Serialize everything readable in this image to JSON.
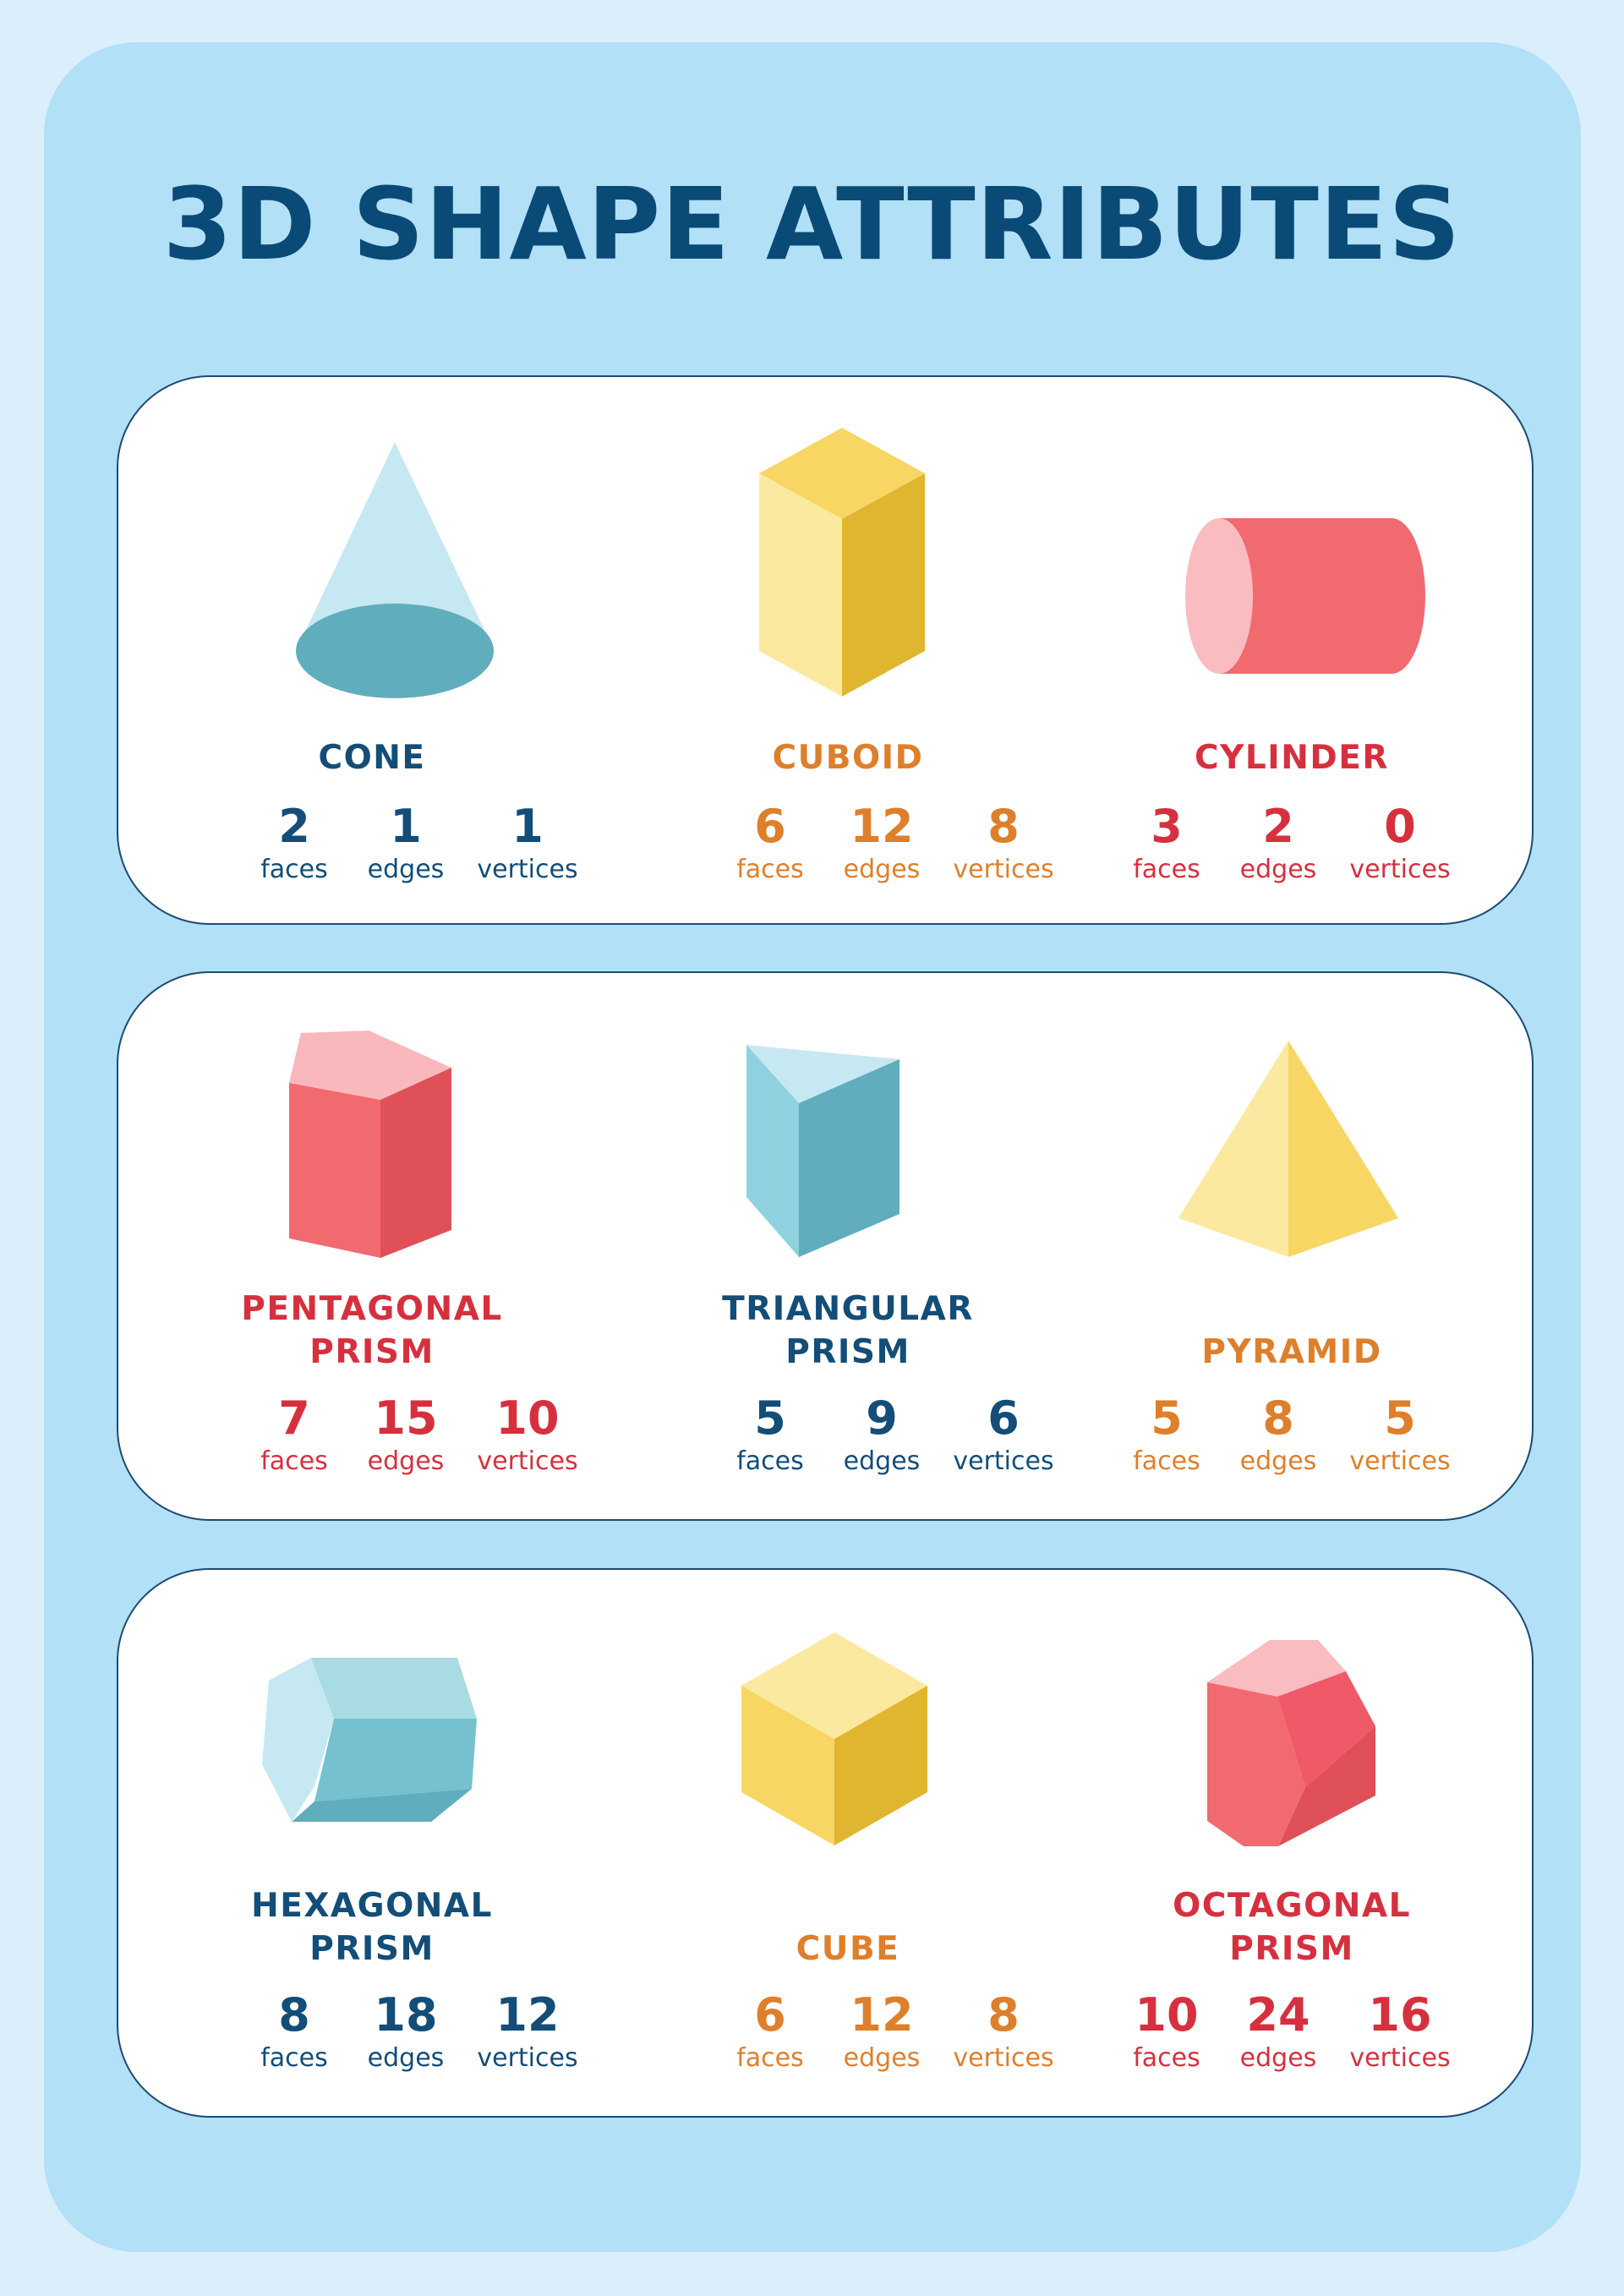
{
  "title": "3D SHAPE ATTRIBUTES",
  "colors": {
    "navy": "#134d78",
    "orange": "#de7f2b",
    "red": "#d6303f",
    "background": "#b2e0f6"
  },
  "rows": [
    {
      "shapes": [
        {
          "name_lines": [
            "CONE"
          ],
          "icon": "cone-icon",
          "color": "navy",
          "faces": "2",
          "edges": "1",
          "vertices": "1"
        },
        {
          "name_lines": [
            "CUBOID"
          ],
          "icon": "cuboid-icon",
          "color": "orange",
          "faces": "6",
          "edges": "12",
          "vertices": "8"
        },
        {
          "name_lines": [
            "CYLINDER"
          ],
          "icon": "cylinder-icon",
          "color": "red",
          "faces": "3",
          "edges": "2",
          "vertices": "0"
        }
      ]
    },
    {
      "shapes": [
        {
          "name_lines": [
            "PENTAGONAL",
            "PRISM"
          ],
          "icon": "pentagonal-prism-icon",
          "color": "red",
          "faces": "7",
          "edges": "15",
          "vertices": "10"
        },
        {
          "name_lines": [
            "TRIANGULAR",
            "PRISM"
          ],
          "icon": "triangular-prism-icon",
          "color": "navy",
          "faces": "5",
          "edges": "9",
          "vertices": "6"
        },
        {
          "name_lines": [
            "PYRAMID"
          ],
          "icon": "pyramid-icon",
          "color": "orange",
          "faces": "5",
          "edges": "8",
          "vertices": "5"
        }
      ]
    },
    {
      "shapes": [
        {
          "name_lines": [
            "HEXAGONAL",
            "PRISM"
          ],
          "icon": "hexagonal-prism-icon",
          "color": "navy",
          "faces": "8",
          "edges": "18",
          "vertices": "12"
        },
        {
          "name_lines": [
            "CUBE"
          ],
          "icon": "cube-icon",
          "color": "orange",
          "faces": "6",
          "edges": "12",
          "vertices": "8"
        },
        {
          "name_lines": [
            "OCTAGONAL",
            "PRISM"
          ],
          "icon": "octagonal-prism-icon",
          "color": "red",
          "faces": "10",
          "edges": "24",
          "vertices": "16"
        }
      ]
    }
  ],
  "labels": {
    "faces": "faces",
    "edges": "edges",
    "vertices": "vertices"
  }
}
